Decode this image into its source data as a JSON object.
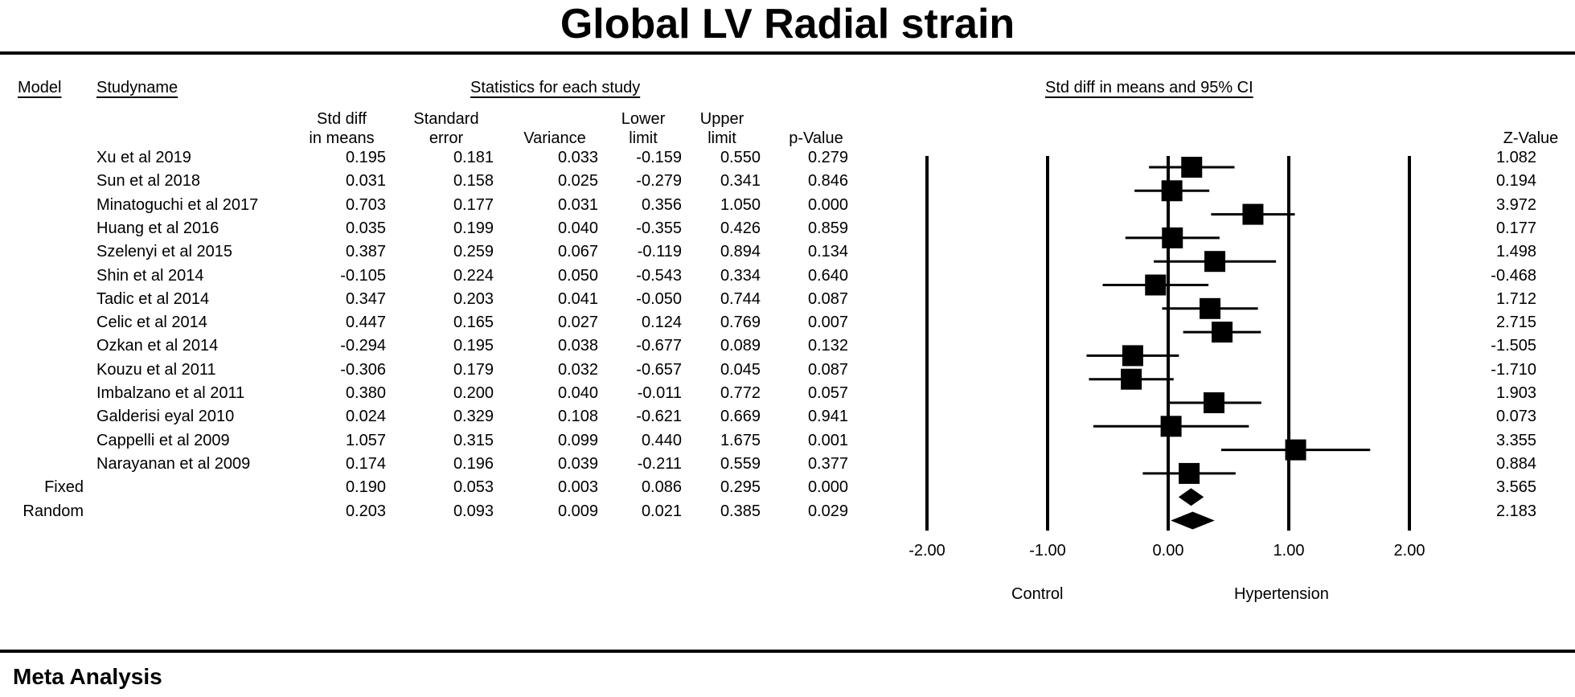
{
  "title": "Global LV Radial strain",
  "headers": {
    "model": "Model",
    "study_name": "Studyname",
    "stats_group": "Statistics for each study",
    "plot_group": "Std diff in means and 95%  CI",
    "std_diff": [
      "Std diff",
      "in means"
    ],
    "std_error": [
      "Standard",
      "error"
    ],
    "variance": "Variance",
    "lower": [
      "Lower",
      "limit"
    ],
    "upper": [
      "Upper",
      "limit"
    ],
    "p_value": "p-Value",
    "z_value": "Z-Value"
  },
  "rows": [
    {
      "model": "",
      "study": "Xu et al 2019",
      "smd": "0.195",
      "se": "0.181",
      "var": "0.033",
      "lower": "-0.159",
      "upper": "0.550",
      "p": "0.279",
      "z": "1.082"
    },
    {
      "model": "",
      "study": "Sun et al 2018",
      "smd": "0.031",
      "se": "0.158",
      "var": "0.025",
      "lower": "-0.279",
      "upper": "0.341",
      "p": "0.846",
      "z": "0.194"
    },
    {
      "model": "",
      "study": "Minatoguchi et al 2017",
      "smd": "0.703",
      "se": "0.177",
      "var": "0.031",
      "lower": "0.356",
      "upper": "1.050",
      "p": "0.000",
      "z": "3.972"
    },
    {
      "model": "",
      "study": "Huang et al 2016",
      "smd": "0.035",
      "se": "0.199",
      "var": "0.040",
      "lower": "-0.355",
      "upper": "0.426",
      "p": "0.859",
      "z": "0.177"
    },
    {
      "model": "",
      "study": "Szelenyi et al 2015",
      "smd": "0.387",
      "se": "0.259",
      "var": "0.067",
      "lower": "-0.119",
      "upper": "0.894",
      "p": "0.134",
      "z": "1.498"
    },
    {
      "model": "",
      "study": "Shin et al 2014",
      "smd": "-0.105",
      "se": "0.224",
      "var": "0.050",
      "lower": "-0.543",
      "upper": "0.334",
      "p": "0.640",
      "z": "-0.468"
    },
    {
      "model": "",
      "study": "Tadic et al 2014",
      "smd": "0.347",
      "se": "0.203",
      "var": "0.041",
      "lower": "-0.050",
      "upper": "0.744",
      "p": "0.087",
      "z": "1.712"
    },
    {
      "model": "",
      "study": "Celic et al 2014",
      "smd": "0.447",
      "se": "0.165",
      "var": "0.027",
      "lower": "0.124",
      "upper": "0.769",
      "p": "0.007",
      "z": "2.715"
    },
    {
      "model": "",
      "study": "Ozkan et al 2014",
      "smd": "-0.294",
      "se": "0.195",
      "var": "0.038",
      "lower": "-0.677",
      "upper": "0.089",
      "p": "0.132",
      "z": "-1.505"
    },
    {
      "model": "",
      "study": "Kouzu et al 2011",
      "smd": "-0.306",
      "se": "0.179",
      "var": "0.032",
      "lower": "-0.657",
      "upper": "0.045",
      "p": "0.087",
      "z": "-1.710"
    },
    {
      "model": "",
      "study": "Imbalzano et al 2011",
      "smd": "0.380",
      "se": "0.200",
      "var": "0.040",
      "lower": "-0.011",
      "upper": "0.772",
      "p": "0.057",
      "z": "1.903"
    },
    {
      "model": "",
      "study": "Galderisi eyal 2010",
      "smd": "0.024",
      "se": "0.329",
      "var": "0.108",
      "lower": "-0.621",
      "upper": "0.669",
      "p": "0.941",
      "z": "0.073"
    },
    {
      "model": "",
      "study": "Cappelli et al 2009",
      "smd": "1.057",
      "se": "0.315",
      "var": "0.099",
      "lower": "0.440",
      "upper": "1.675",
      "p": "0.001",
      "z": "3.355"
    },
    {
      "model": "",
      "study": "Narayanan et al 2009",
      "smd": "0.174",
      "se": "0.196",
      "var": "0.039",
      "lower": "-0.211",
      "upper": "0.559",
      "p": "0.377",
      "z": "0.884"
    },
    {
      "model": "Fixed",
      "study": "",
      "smd": "0.190",
      "se": "0.053",
      "var": "0.003",
      "lower": "0.086",
      "upper": "0.295",
      "p": "0.000",
      "z": "3.565"
    },
    {
      "model": "Random",
      "study": "",
      "smd": "0.203",
      "se": "0.093",
      "var": "0.009",
      "lower": "0.021",
      "upper": "0.385",
      "p": "0.029",
      "z": "2.183"
    }
  ],
  "axis": {
    "ticks": [
      "-2.00",
      "-1.00",
      "0.00",
      "1.00",
      "2.00"
    ],
    "left_label": "Control",
    "right_label": "Hypertension"
  },
  "footer": "Meta Analysis",
  "chart_data": {
    "type": "forest",
    "title": "Global LV Radial strain",
    "xlim": [
      -2,
      2
    ],
    "xticks": [
      -2,
      -1,
      0,
      1,
      2
    ],
    "studies": [
      {
        "name": "Xu et al 2019",
        "estimate": 0.195,
        "lower": -0.159,
        "upper": 0.55
      },
      {
        "name": "Sun et al 2018",
        "estimate": 0.031,
        "lower": -0.279,
        "upper": 0.341
      },
      {
        "name": "Minatoguchi et al 2017",
        "estimate": 0.703,
        "lower": 0.356,
        "upper": 1.05
      },
      {
        "name": "Huang et al 2016",
        "estimate": 0.035,
        "lower": -0.355,
        "upper": 0.426
      },
      {
        "name": "Szelenyi et al 2015",
        "estimate": 0.387,
        "lower": -0.119,
        "upper": 0.894
      },
      {
        "name": "Shin et al 2014",
        "estimate": -0.105,
        "lower": -0.543,
        "upper": 0.334
      },
      {
        "name": "Tadic et al 2014",
        "estimate": 0.347,
        "lower": -0.05,
        "upper": 0.744
      },
      {
        "name": "Celic et al 2014",
        "estimate": 0.447,
        "lower": 0.124,
        "upper": 0.769
      },
      {
        "name": "Ozkan et al 2014",
        "estimate": -0.294,
        "lower": -0.677,
        "upper": 0.089
      },
      {
        "name": "Kouzu et al 2011",
        "estimate": -0.306,
        "lower": -0.657,
        "upper": 0.045
      },
      {
        "name": "Imbalzano et al 2011",
        "estimate": 0.38,
        "lower": -0.011,
        "upper": 0.772
      },
      {
        "name": "Galderisi eyal 2010",
        "estimate": 0.024,
        "lower": -0.621,
        "upper": 0.669
      },
      {
        "name": "Cappelli et al 2009",
        "estimate": 1.057,
        "lower": 0.44,
        "upper": 1.675
      },
      {
        "name": "Narayanan et al 2009",
        "estimate": 0.174,
        "lower": -0.211,
        "upper": 0.559
      }
    ],
    "pooled": [
      {
        "name": "Fixed",
        "estimate": 0.19,
        "lower": 0.086,
        "upper": 0.295
      },
      {
        "name": "Random",
        "estimate": 0.203,
        "lower": 0.021,
        "upper": 0.385
      }
    ],
    "xlabel_left": "Control",
    "xlabel_right": "Hypertension"
  }
}
